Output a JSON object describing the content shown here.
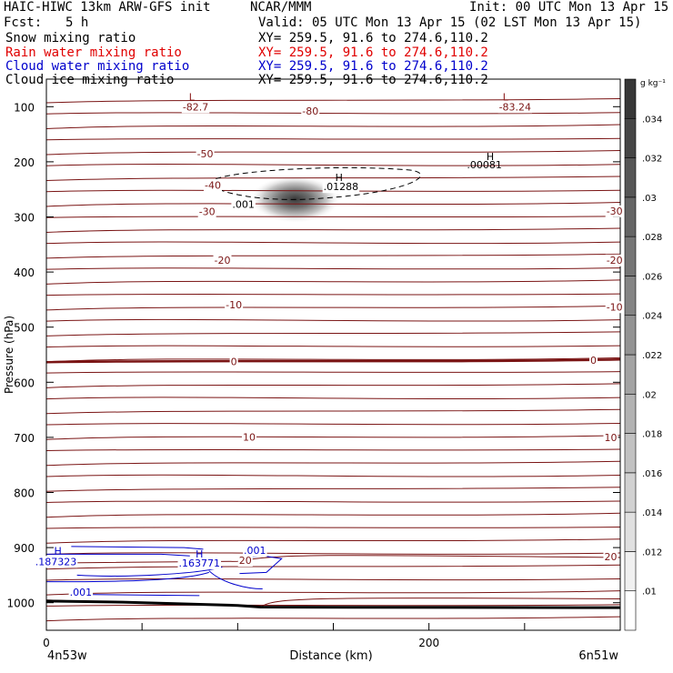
{
  "header": {
    "model": "HAIC-HIWC 13km ARW-GFS init",
    "center": "NCAR/MMM",
    "init": "Init: 00 UTC Mon 13 Apr 15",
    "fcst_label": "Fcst:",
    "fcst_value": "5 h",
    "valid": "Valid: 05 UTC Mon 13 Apr 15 (02 LST Mon 13 Apr 15)",
    "fields": [
      {
        "name": "Snow mixing ratio",
        "xy": "XY= 259.5, 91.6 to 274.6,110.2",
        "color": "#000000"
      },
      {
        "name": "Rain water mixing ratio",
        "xy": "XY= 259.5, 91.6 to 274.6,110.2",
        "color": "#e00000"
      },
      {
        "name": "Cloud water mixing ratio",
        "xy": "XY= 259.5, 91.6 to 274.6,110.2",
        "color": "#0000cc"
      },
      {
        "name": "Cloud ice mixing ratio",
        "xy": "XY= 259.5, 91.6 to 274.6,110.2",
        "color": "#000000"
      }
    ]
  },
  "chart_data": {
    "type": "heatmap",
    "ylabel": "Pressure (hPa)",
    "xlabel": "Distance (km)",
    "x_ticks": [
      0,
      200
    ],
    "y_ticks": [
      100,
      200,
      300,
      400,
      500,
      600,
      700,
      800,
      900,
      1000
    ],
    "xlim": [
      0,
      300
    ],
    "ylim_hpa": [
      1050,
      50
    ],
    "x_end_labels": {
      "left": "4n53w",
      "right": "6n51w"
    },
    "colorbar": {
      "unit": "g kg⁻¹",
      "ticks": [
        ".01",
        ".012",
        ".014",
        ".016",
        ".018",
        ".02",
        ".022",
        ".024",
        ".026",
        ".028",
        ".03",
        ".032",
        ".034"
      ]
    },
    "temperature_contour_labels": [
      {
        "text": "-82.7",
        "x": 78,
        "p": 100
      },
      {
        "text": "-80",
        "x": 138,
        "p": 108
      },
      {
        "text": "-83.24",
        "x": 245,
        "p": 100
      },
      {
        "text": "-50",
        "x": 83,
        "p": 185
      },
      {
        "text": "-40",
        "x": 87,
        "p": 242
      },
      {
        "text": "-30",
        "x": 84,
        "p": 290
      },
      {
        "text": "-30",
        "x": 297,
        "p": 289
      },
      {
        "text": "-20",
        "x": 92,
        "p": 378
      },
      {
        "text": "-20",
        "x": 297,
        "p": 378
      },
      {
        "text": "-10",
        "x": 98,
        "p": 459
      },
      {
        "text": "-10",
        "x": 297,
        "p": 463
      },
      {
        "text": "0",
        "x": 98,
        "p": 562
      },
      {
        "text": "0",
        "x": 286,
        "p": 560
      },
      {
        "text": "10",
        "x": 106,
        "p": 699
      },
      {
        "text": "10",
        "x": 295,
        "p": 700
      },
      {
        "text": "20",
        "x": 104,
        "p": 923
      },
      {
        "text": "20",
        "x": 295,
        "p": 916
      }
    ],
    "ice_contour_labels": [
      {
        "text": ".001",
        "x": 103,
        "p": 277
      },
      {
        "text": ".01288",
        "x": 154,
        "p": 245
      }
    ],
    "cloud_water_labels": [
      {
        "text": ".187323",
        "x": 5,
        "p": 925
      },
      {
        "text": ".163771",
        "x": 80,
        "p": 928
      },
      {
        "text": ".001",
        "x": 109,
        "p": 905
      },
      {
        "text": ".001",
        "x": 18,
        "p": 981
      }
    ],
    "extrema_markers": [
      {
        "text": "L",
        "x": 76,
        "p": 82,
        "color": "#8b1a1a"
      },
      {
        "text": "L",
        "x": 240,
        "p": 82,
        "color": "#8b1a1a"
      },
      {
        "text": "H",
        "x": 232,
        "p": 190,
        "color": "#000000"
      },
      {
        "text": ".00081",
        "x": 229,
        "p": 205,
        "color": "#000000"
      },
      {
        "text": "H",
        "x": 153,
        "p": 228,
        "color": "#000000"
      },
      {
        "text": "H",
        "x": 6,
        "p": 906,
        "color": "#0000cc"
      },
      {
        "text": "H",
        "x": 80,
        "p": 911,
        "color": "#0000cc"
      }
    ],
    "snow_max": {
      "x": 130,
      "p": 268,
      "value": 0.034
    }
  }
}
